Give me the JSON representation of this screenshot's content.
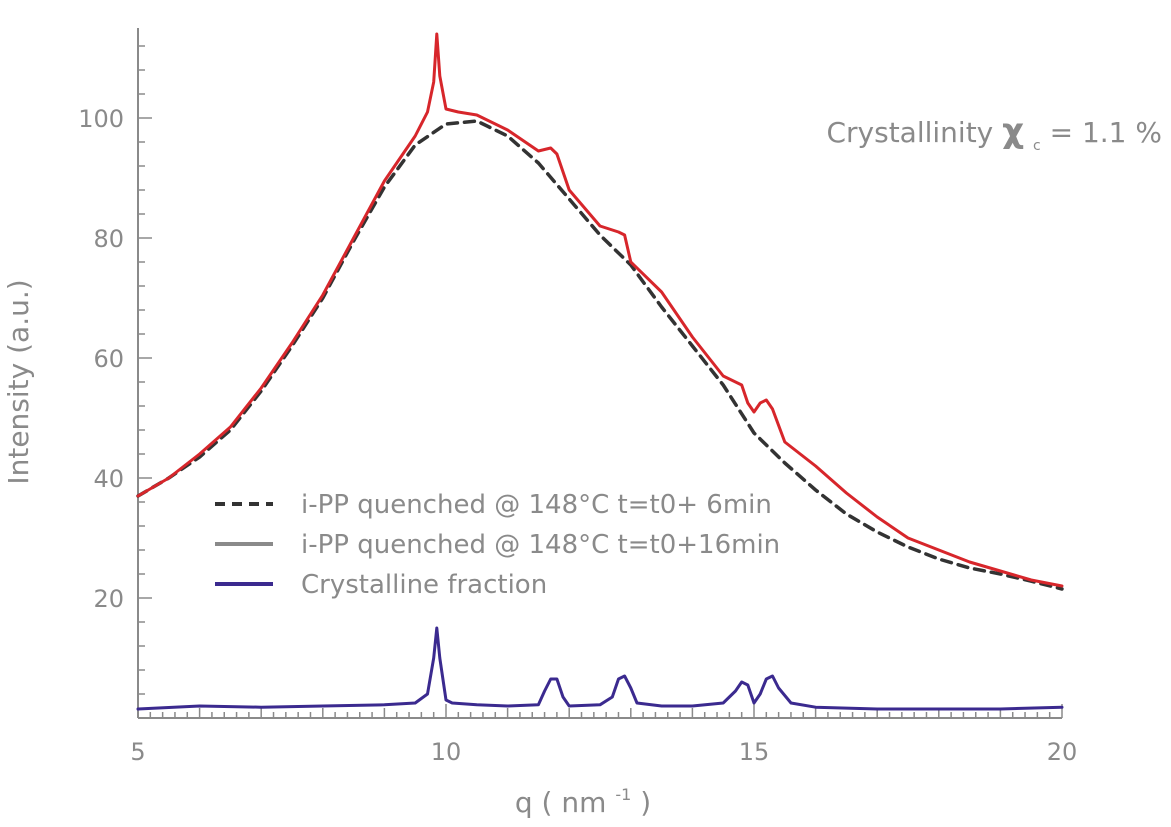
{
  "chart_data": {
    "type": "line",
    "title": "",
    "xlabel": "q",
    "xlabel_unit": "nm",
    "xlabel_unit_exp": "-1",
    "xlabel_open": "(",
    "xlabel_close": ")",
    "ylabel": "Intensity (a.u.)",
    "xlim": [
      5,
      20
    ],
    "ylim": [
      0,
      115
    ],
    "x_ticks": [
      5,
      10,
      15,
      20
    ],
    "x_tick_labels": [
      "5",
      "10",
      "15",
      "20"
    ],
    "y_ticks": [
      20,
      40,
      60,
      80,
      100
    ],
    "y_tick_labels": [
      "20",
      "40",
      "60",
      "80",
      "100"
    ],
    "grid": false,
    "legend_position": "lower-center",
    "annotation": {
      "prefix": "Crystallinity ",
      "symbol": "χ",
      "subscript": "c",
      "suffix": " = 1.1 %"
    },
    "series": [
      {
        "name": "i-PP quenched @ 148°C t=t0+ 6min",
        "color": "#333333",
        "style": "dashed",
        "x": [
          5.0,
          5.5,
          6.0,
          6.5,
          7.0,
          7.5,
          8.0,
          8.5,
          9.0,
          9.5,
          10.0,
          10.5,
          11.0,
          11.5,
          12.0,
          12.5,
          13.0,
          13.5,
          14.0,
          14.5,
          15.0,
          15.5,
          16.0,
          16.5,
          17.0,
          17.5,
          18.0,
          18.5,
          19.0,
          19.5,
          20.0
        ],
        "y": [
          37.0,
          40.0,
          43.5,
          48.0,
          54.5,
          62.0,
          70.0,
          79.5,
          88.5,
          95.5,
          99.0,
          99.5,
          97.0,
          92.5,
          86.5,
          80.5,
          75.5,
          68.5,
          62.0,
          55.5,
          47.5,
          42.5,
          38.0,
          34.0,
          31.0,
          28.5,
          26.5,
          25.0,
          24.0,
          22.8,
          21.5
        ]
      },
      {
        "name": "i-PP quenched @ 148°C t=t0+16min",
        "color": "#d7262b",
        "legend_color": "#8a8a8a",
        "style": "solid",
        "x": [
          5.0,
          5.5,
          6.0,
          6.5,
          7.0,
          7.5,
          8.0,
          8.5,
          9.0,
          9.5,
          9.7,
          9.8,
          9.85,
          9.9,
          10.0,
          10.2,
          10.5,
          11.0,
          11.5,
          11.7,
          11.8,
          12.0,
          12.5,
          12.8,
          12.9,
          13.0,
          13.5,
          14.0,
          14.5,
          14.8,
          14.9,
          15.0,
          15.1,
          15.2,
          15.3,
          15.5,
          16.0,
          16.5,
          17.0,
          17.5,
          18.0,
          18.5,
          19.0,
          19.5,
          20.0
        ],
        "y": [
          37.0,
          40.0,
          44.0,
          48.5,
          55.0,
          62.5,
          70.5,
          80.0,
          89.5,
          97.0,
          101.0,
          106.0,
          114.0,
          107.0,
          101.5,
          101.0,
          100.5,
          98.0,
          94.5,
          95.0,
          94.0,
          88.0,
          82.0,
          81.0,
          80.5,
          76.0,
          71.0,
          63.5,
          57.0,
          55.5,
          52.5,
          51.0,
          52.5,
          53.0,
          51.5,
          46.0,
          42.0,
          37.5,
          33.5,
          30.0,
          28.0,
          26.0,
          24.5,
          23.0,
          22.0
        ]
      },
      {
        "name": "Crystalline fraction",
        "color": "#3b2a8f",
        "style": "solid",
        "x": [
          5.0,
          6.0,
          7.0,
          8.0,
          9.0,
          9.5,
          9.7,
          9.8,
          9.85,
          9.9,
          10.0,
          10.1,
          10.5,
          11.0,
          11.5,
          11.6,
          11.7,
          11.8,
          11.9,
          12.0,
          12.5,
          12.7,
          12.8,
          12.9,
          13.0,
          13.1,
          13.5,
          14.0,
          14.5,
          14.7,
          14.8,
          14.9,
          15.0,
          15.1,
          15.2,
          15.3,
          15.4,
          15.6,
          16.0,
          17.0,
          18.0,
          19.0,
          20.0
        ],
        "y": [
          1.5,
          2.0,
          1.8,
          2.0,
          2.2,
          2.5,
          4.0,
          10.0,
          15.0,
          10.0,
          3.0,
          2.5,
          2.2,
          2.0,
          2.2,
          4.5,
          6.5,
          6.5,
          3.5,
          2.0,
          2.2,
          3.5,
          6.5,
          7.0,
          5.0,
          2.5,
          2.0,
          2.0,
          2.5,
          4.5,
          6.0,
          5.5,
          2.5,
          4.0,
          6.5,
          7.0,
          5.0,
          2.5,
          1.8,
          1.5,
          1.5,
          1.5,
          1.8
        ]
      }
    ]
  }
}
